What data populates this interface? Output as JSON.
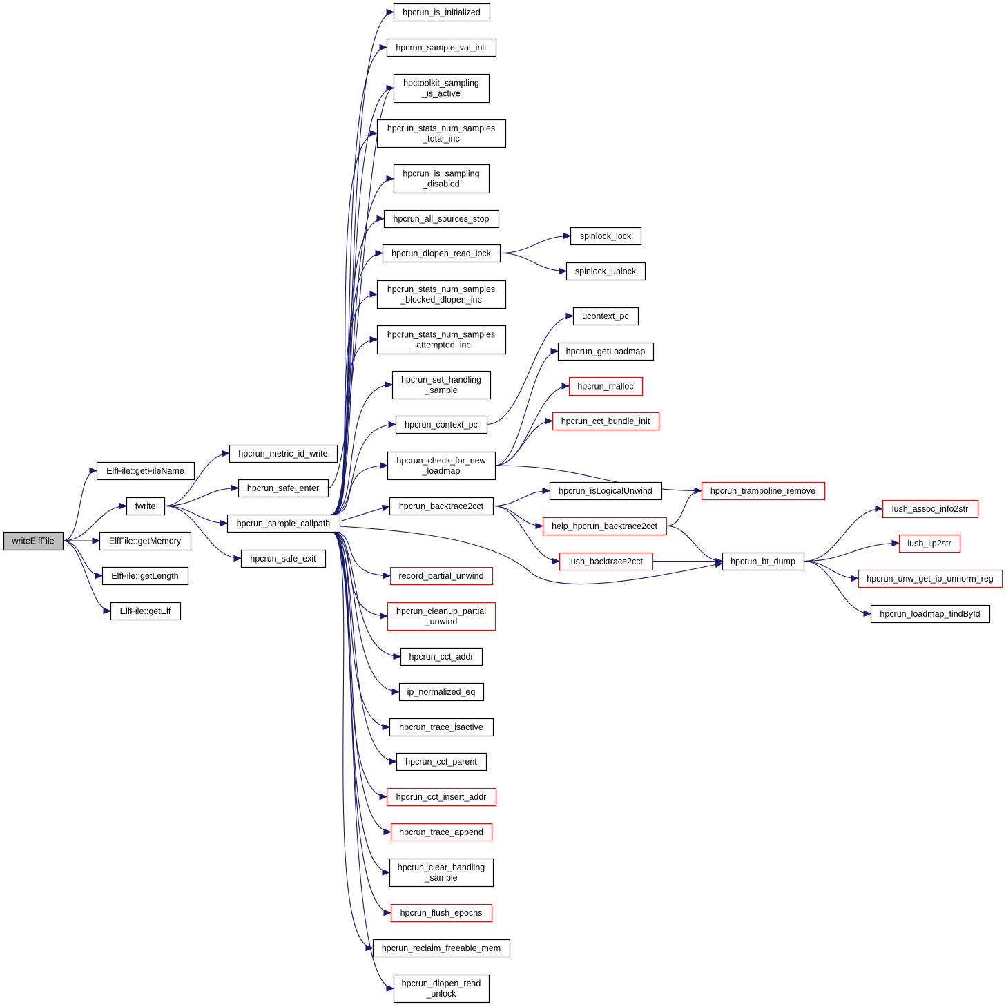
{
  "colors": {
    "edge": "#191970",
    "node_border": "#000000",
    "node_border_external": "#ff0000",
    "root_fill": "#bfbfbf",
    "node_fill": "#ffffff"
  },
  "nodes": {
    "writeElfFile": {
      "lines": [
        "writeElfFile"
      ],
      "root": true
    },
    "getFileName": {
      "lines": [
        "ElfFile::getFileName"
      ]
    },
    "fwrite": {
      "lines": [
        "fwrite"
      ]
    },
    "getMemory": {
      "lines": [
        "ElfFile::getMemory"
      ]
    },
    "getLength": {
      "lines": [
        "ElfFile::getLength"
      ]
    },
    "getElf": {
      "lines": [
        "ElfFile::getElf"
      ]
    },
    "metric_id_write": {
      "lines": [
        "hpcrun_metric_id_write"
      ]
    },
    "safe_enter": {
      "lines": [
        "hpcrun_safe_enter"
      ]
    },
    "sample_callpath": {
      "lines": [
        "hpcrun_sample_callpath"
      ]
    },
    "safe_exit": {
      "lines": [
        "hpcrun_safe_exit"
      ]
    },
    "is_initialized": {
      "lines": [
        "hpcrun_is_initialized"
      ]
    },
    "sample_val_init": {
      "lines": [
        "hpcrun_sample_val_init"
      ]
    },
    "sampling_is_active": {
      "lines": [
        "hpctoolkit_sampling",
        "_is_active"
      ]
    },
    "samples_total_inc": {
      "lines": [
        "hpcrun_stats_num_samples",
        "_total_inc"
      ]
    },
    "is_sampling_disabled": {
      "lines": [
        "hpcrun_is_sampling",
        "_disabled"
      ]
    },
    "all_sources_stop": {
      "lines": [
        "hpcrun_all_sources_stop"
      ]
    },
    "dlopen_read_lock": {
      "lines": [
        "hpcrun_dlopen_read_lock"
      ]
    },
    "samples_blocked_dlopen_inc": {
      "lines": [
        "hpcrun_stats_num_samples",
        "_blocked_dlopen_inc"
      ]
    },
    "samples_attempted_inc": {
      "lines": [
        "hpcrun_stats_num_samples",
        "_attempted_inc"
      ]
    },
    "set_handling_sample": {
      "lines": [
        "hpcrun_set_handling",
        "_sample"
      ]
    },
    "context_pc": {
      "lines": [
        "hpcrun_context_pc"
      ]
    },
    "check_for_new_loadmap": {
      "lines": [
        "hpcrun_check_for_new",
        "_loadmap"
      ]
    },
    "backtrace2cct": {
      "lines": [
        "hpcrun_backtrace2cct"
      ]
    },
    "record_partial_unwind": {
      "lines": [
        "record_partial_unwind"
      ],
      "external": true
    },
    "cleanup_partial_unwind": {
      "lines": [
        "hpcrun_cleanup_partial",
        "_unwind"
      ],
      "external": true
    },
    "cct_addr": {
      "lines": [
        "hpcrun_cct_addr"
      ]
    },
    "ip_normalized_eq": {
      "lines": [
        "ip_normalized_eq"
      ]
    },
    "trace_isactive": {
      "lines": [
        "hpcrun_trace_isactive"
      ]
    },
    "cct_parent": {
      "lines": [
        "hpcrun_cct_parent"
      ]
    },
    "cct_insert_addr": {
      "lines": [
        "hpcrun_cct_insert_addr"
      ],
      "external": true
    },
    "trace_append": {
      "lines": [
        "hpcrun_trace_append"
      ],
      "external": true
    },
    "clear_handling_sample": {
      "lines": [
        "hpcrun_clear_handling",
        "_sample"
      ]
    },
    "flush_epochs": {
      "lines": [
        "hpcrun_flush_epochs"
      ],
      "external": true
    },
    "reclaim_freeable_mem": {
      "lines": [
        "hpcrun_reclaim_freeable_mem"
      ]
    },
    "dlopen_read_unlock": {
      "lines": [
        "hpcrun_dlopen_read",
        "_unlock"
      ]
    },
    "spinlock_lock": {
      "lines": [
        "spinlock_lock"
      ]
    },
    "spinlock_unlock": {
      "lines": [
        "spinlock_unlock"
      ]
    },
    "ucontext_pc": {
      "lines": [
        "ucontext_pc"
      ]
    },
    "getLoadmap": {
      "lines": [
        "hpcrun_getLoadmap"
      ]
    },
    "malloc": {
      "lines": [
        "hpcrun_malloc"
      ],
      "external": true
    },
    "cct_bundle_init": {
      "lines": [
        "hpcrun_cct_bundle_init"
      ],
      "external": true
    },
    "isLogicalUnwind": {
      "lines": [
        "hpcrun_isLogicalUnwind"
      ]
    },
    "help_backtrace2cct": {
      "lines": [
        "help_hpcrun_backtrace2cct"
      ],
      "external": true
    },
    "lush_backtrace2cct": {
      "lines": [
        "lush_backtrace2cct"
      ],
      "external": true
    },
    "trampoline_remove": {
      "lines": [
        "hpcrun_trampoline_remove"
      ],
      "external": true
    },
    "bt_dump": {
      "lines": [
        "hpcrun_bt_dump"
      ]
    },
    "lush_assoc_info2str": {
      "lines": [
        "lush_assoc_info2str"
      ],
      "external": true
    },
    "lush_lip2str": {
      "lines": [
        "lush_lip2str"
      ],
      "external": true
    },
    "unw_get_ip_unnorm_reg": {
      "lines": [
        "hpcrun_unw_get_ip_unnorm_reg"
      ],
      "external": true
    },
    "loadmap_findById": {
      "lines": [
        "hpcrun_loadmap_findById"
      ]
    }
  },
  "edges": [
    [
      "writeElfFile",
      "getFileName"
    ],
    [
      "writeElfFile",
      "fwrite"
    ],
    [
      "writeElfFile",
      "getMemory"
    ],
    [
      "writeElfFile",
      "getLength"
    ],
    [
      "writeElfFile",
      "getElf"
    ],
    [
      "fwrite",
      "metric_id_write"
    ],
    [
      "fwrite",
      "safe_enter"
    ],
    [
      "fwrite",
      "sample_callpath"
    ],
    [
      "fwrite",
      "safe_exit"
    ],
    [
      "safe_enter",
      "sampling_is_active"
    ],
    [
      "sample_callpath",
      "is_initialized"
    ],
    [
      "sample_callpath",
      "sample_val_init"
    ],
    [
      "sample_callpath",
      "sampling_is_active"
    ],
    [
      "sample_callpath",
      "samples_total_inc"
    ],
    [
      "sample_callpath",
      "is_sampling_disabled"
    ],
    [
      "sample_callpath",
      "all_sources_stop"
    ],
    [
      "sample_callpath",
      "dlopen_read_lock"
    ],
    [
      "sample_callpath",
      "samples_blocked_dlopen_inc"
    ],
    [
      "sample_callpath",
      "samples_attempted_inc"
    ],
    [
      "sample_callpath",
      "set_handling_sample"
    ],
    [
      "sample_callpath",
      "context_pc"
    ],
    [
      "sample_callpath",
      "check_for_new_loadmap"
    ],
    [
      "sample_callpath",
      "backtrace2cct"
    ],
    [
      "sample_callpath",
      "record_partial_unwind"
    ],
    [
      "sample_callpath",
      "cleanup_partial_unwind"
    ],
    [
      "sample_callpath",
      "cct_addr"
    ],
    [
      "sample_callpath",
      "ip_normalized_eq"
    ],
    [
      "sample_callpath",
      "trace_isactive"
    ],
    [
      "sample_callpath",
      "cct_parent"
    ],
    [
      "sample_callpath",
      "cct_insert_addr"
    ],
    [
      "sample_callpath",
      "trace_append"
    ],
    [
      "sample_callpath",
      "clear_handling_sample"
    ],
    [
      "sample_callpath",
      "flush_epochs"
    ],
    [
      "sample_callpath",
      "reclaim_freeable_mem"
    ],
    [
      "sample_callpath",
      "dlopen_read_unlock"
    ],
    [
      "sample_callpath",
      "bt_dump"
    ],
    [
      "dlopen_read_lock",
      "spinlock_lock"
    ],
    [
      "dlopen_read_lock",
      "spinlock_unlock"
    ],
    [
      "context_pc",
      "ucontext_pc"
    ],
    [
      "check_for_new_loadmap",
      "getLoadmap"
    ],
    [
      "check_for_new_loadmap",
      "malloc"
    ],
    [
      "check_for_new_loadmap",
      "cct_bundle_init"
    ],
    [
      "check_for_new_loadmap",
      "trampoline_remove"
    ],
    [
      "backtrace2cct",
      "isLogicalUnwind"
    ],
    [
      "backtrace2cct",
      "help_backtrace2cct"
    ],
    [
      "backtrace2cct",
      "lush_backtrace2cct"
    ],
    [
      "help_backtrace2cct",
      "trampoline_remove"
    ],
    [
      "help_backtrace2cct",
      "bt_dump"
    ],
    [
      "lush_backtrace2cct",
      "bt_dump"
    ],
    [
      "bt_dump",
      "lush_assoc_info2str"
    ],
    [
      "bt_dump",
      "lush_lip2str"
    ],
    [
      "bt_dump",
      "unw_get_ip_unnorm_reg"
    ],
    [
      "bt_dump",
      "loadmap_findById"
    ]
  ]
}
